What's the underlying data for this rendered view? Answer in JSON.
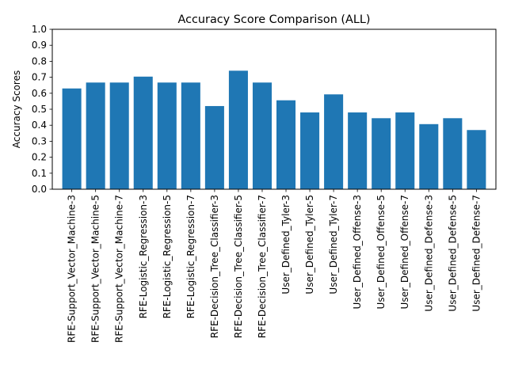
{
  "chart_data": {
    "type": "bar",
    "title": "Accuracy Score Comparison (ALL)",
    "xlabel": "",
    "ylabel": "Accuracy Scores",
    "ylim": [
      0,
      1.0
    ],
    "yticks": [
      "0.0",
      "0.1",
      "0.2",
      "0.3",
      "0.4",
      "0.5",
      "0.6",
      "0.7",
      "0.8",
      "0.9",
      "1.0"
    ],
    "grid": false,
    "bar_color": "#1f77b4",
    "categories": [
      "RFE-Support_Vector_Machine-3",
      "RFE-Support_Vector_Machine-5",
      "RFE-Support_Vector_Machine-7",
      "RFE-Logistic_Regression-3",
      "RFE-Logistic_Regression-5",
      "RFE-Logistic_Regression-7",
      "RFE-Decision_Tree_Classifier-3",
      "RFE-Decision_Tree_Classifier-5",
      "RFE-Decision_Tree_Classifier-7",
      "User_Defined_Tyler-3",
      "User_Defined_Tyler-5",
      "User_Defined_Tyler-7",
      "User_Defined_Offense-3",
      "User_Defined_Offense-5",
      "User_Defined_Offense-7",
      "User_Defined_Defense-3",
      "User_Defined_Defense-5",
      "User_Defined_Defense-7"
    ],
    "values": [
      0.63,
      0.667,
      0.667,
      0.704,
      0.667,
      0.667,
      0.52,
      0.741,
      0.667,
      0.556,
      0.48,
      0.593,
      0.48,
      0.444,
      0.48,
      0.407,
      0.444,
      0.37
    ]
  }
}
